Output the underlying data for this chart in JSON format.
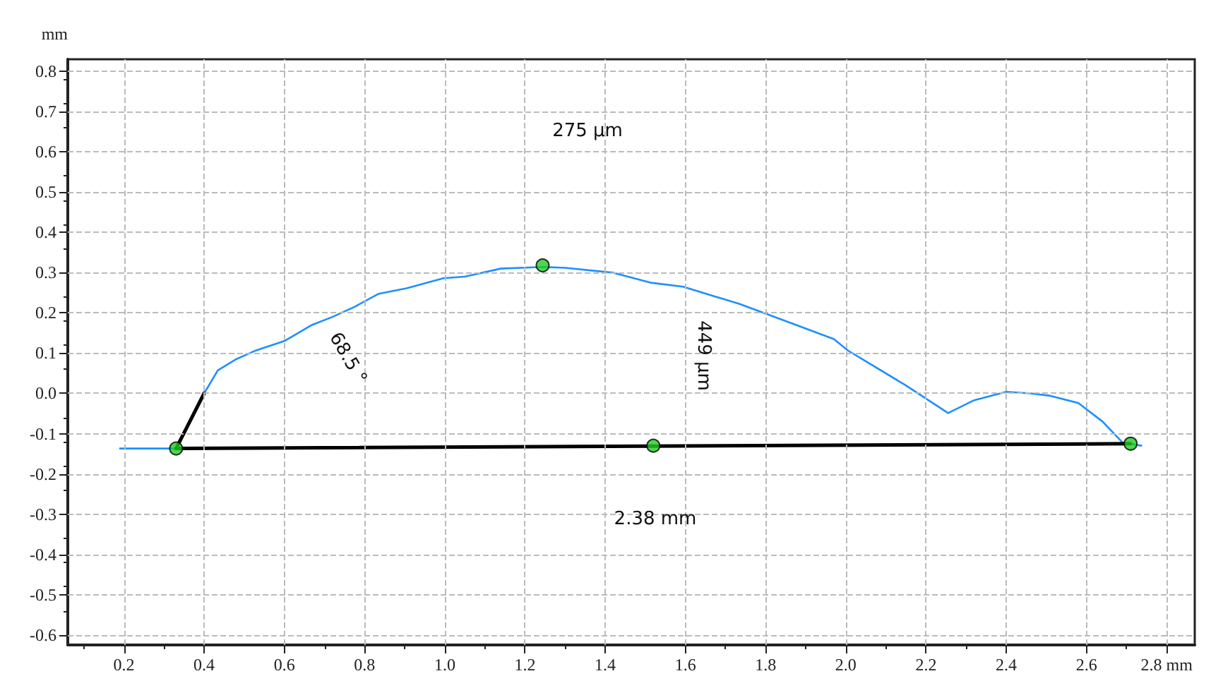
{
  "chart_data": {
    "type": "line",
    "ylabel": "mm",
    "xlim": [
      0.06,
      2.87
    ],
    "ylim": [
      -0.625,
      0.83
    ],
    "xticks": [
      0.2,
      0.4,
      0.6,
      0.8,
      {
        "value": 1.0,
        "label": "1.0"
      },
      1.2,
      1.4,
      1.6,
      1.8,
      {
        "value": 2.0,
        "label": "2.0"
      },
      2.2,
      2.4,
      2.6,
      {
        "value": 2.8,
        "label": "2.8 mm"
      }
    ],
    "yticks": [
      -0.6,
      -0.5,
      -0.4,
      -0.3,
      -0.2,
      -0.1,
      {
        "value": 0,
        "label": "0.0"
      },
      0.1,
      0.2,
      0.3,
      0.4,
      0.5,
      0.6,
      0.7,
      0.8
    ],
    "grid": true,
    "marker": "none",
    "line_style": "solid",
    "series": [
      {
        "color": "#1e8fff",
        "x": [
          0.19,
          0.25,
          0.33,
          0.36,
          0.4,
          0.434,
          0.48,
          0.53,
          0.6,
          0.669,
          0.72,
          0.775,
          0.834,
          0.905,
          0.997,
          1.05,
          1.14,
          1.244,
          1.3,
          1.418,
          1.513,
          1.594,
          1.735,
          1.83,
          1.97,
          2.006,
          2.146,
          2.255,
          2.32,
          2.4,
          2.46,
          2.51,
          2.58,
          2.64,
          2.69,
          2.737
        ],
        "values": [
          -0.137,
          -0.137,
          -0.137,
          -0.08,
          0.0,
          0.057,
          0.085,
          0.107,
          0.13,
          0.17,
          0.19,
          0.215,
          0.247,
          0.261,
          0.286,
          0.29,
          0.31,
          0.314,
          0.312,
          0.3,
          0.275,
          0.265,
          0.222,
          0.187,
          0.135,
          0.106,
          0.022,
          -0.049,
          -0.017,
          0.004,
          0.0,
          -0.006,
          -0.024,
          -0.07,
          -0.122,
          -0.13
        ]
      },
      {
        "color": "#000000",
        "x": [
          0.33,
          2.71
        ],
        "values": [
          -0.137,
          -0.125
        ]
      },
      {
        "color": "#000000",
        "x": [
          0.33,
          0.4
        ],
        "values": [
          -0.137,
          0.0
        ]
      },
      {
        "type": "scatter",
        "marker": "circle",
        "color": "#22cc22",
        "x": [
          0.33,
          1.244,
          1.52,
          2.71
        ],
        "values": [
          -0.137,
          0.318,
          -0.13,
          -0.125
        ]
      }
    ],
    "annotations": [
      "275 µm",
      "449 µm",
      "68.5 °",
      "2.38 mm"
    ]
  }
}
